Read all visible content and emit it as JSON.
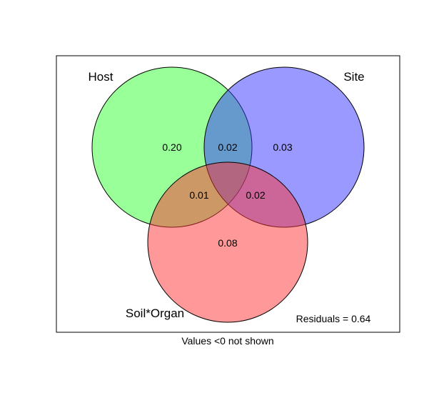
{
  "venn": {
    "sets": [
      {
        "label": "Host",
        "color": "#33ff33"
      },
      {
        "label": "Site",
        "color": "#3333ff"
      },
      {
        "label": "Soil*Organ",
        "color": "#ff3333"
      }
    ],
    "regions": {
      "host_only": "0.20",
      "host_site": "0.02",
      "site_only": "0.03",
      "host_soil": "0.01",
      "site_soil": "0.02",
      "soil_only": "0.08"
    },
    "residuals": "Residuals = 0.64",
    "footnote": "Values <0 not shown"
  }
}
